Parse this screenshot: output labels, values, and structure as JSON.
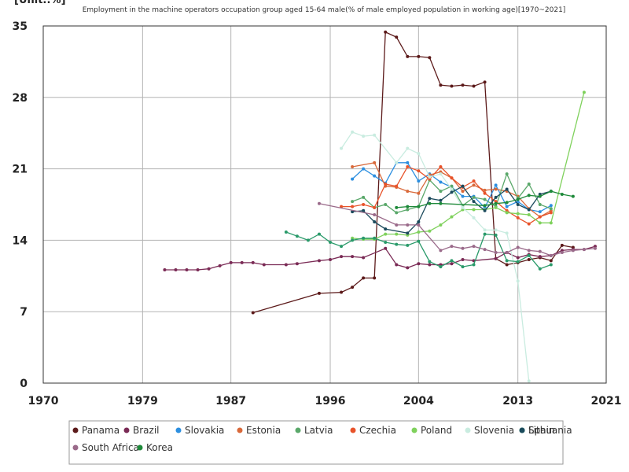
{
  "chart_data": {
    "type": "line",
    "title": "Employment in the machine operators occupation group aged 15-64 male(% of male employed population in working age)[1970~2021]",
    "unit_label": "[Unit.:%]",
    "xlabel": "",
    "ylabel": "",
    "xlim": [
      1970,
      2021
    ],
    "ylim": [
      0,
      35
    ],
    "x_ticks": [
      1970,
      1979,
      1987,
      1996,
      2004,
      2013,
      2021
    ],
    "y_ticks": [
      0,
      7,
      14,
      21,
      28,
      35
    ],
    "grid": true,
    "legend_position": "bottom",
    "series": [
      {
        "name": "Panama",
        "color": "#5c1a1a",
        "points": [
          [
            1989,
            6.9
          ],
          [
            1995,
            8.8
          ],
          [
            1997,
            8.9
          ],
          [
            1998,
            9.4
          ],
          [
            1999,
            10.3
          ],
          [
            2000,
            10.3
          ],
          [
            2001,
            34.4
          ],
          [
            2002,
            33.9
          ],
          [
            2003,
            32.0
          ],
          [
            2004,
            32.0
          ],
          [
            2005,
            31.9
          ],
          [
            2006,
            29.2
          ],
          [
            2007,
            29.1
          ],
          [
            2008,
            29.2
          ],
          [
            2009,
            29.1
          ],
          [
            2010,
            29.5
          ],
          [
            2011,
            12.2
          ],
          [
            2012,
            11.6
          ],
          [
            2013,
            11.8
          ],
          [
            2014,
            12.1
          ],
          [
            2015,
            12.3
          ],
          [
            2016,
            12.0
          ],
          [
            2017,
            13.5
          ],
          [
            2018,
            13.3
          ]
        ]
      },
      {
        "name": "Brazil",
        "color": "#7a2a55",
        "points": [
          [
            1981,
            11.1
          ],
          [
            1982,
            11.1
          ],
          [
            1983,
            11.1
          ],
          [
            1984,
            11.1
          ],
          [
            1985,
            11.2
          ],
          [
            1986,
            11.5
          ],
          [
            1987,
            11.8
          ],
          [
            1988,
            11.8
          ],
          [
            1989,
            11.8
          ],
          [
            1990,
            11.6
          ],
          [
            1992,
            11.6
          ],
          [
            1993,
            11.7
          ],
          [
            1995,
            12.0
          ],
          [
            1996,
            12.1
          ],
          [
            1997,
            12.4
          ],
          [
            1998,
            12.4
          ],
          [
            1999,
            12.3
          ],
          [
            2001,
            13.2
          ],
          [
            2002,
            11.6
          ],
          [
            2003,
            11.3
          ],
          [
            2004,
            11.7
          ],
          [
            2005,
            11.6
          ],
          [
            2006,
            11.6
          ],
          [
            2007,
            11.7
          ],
          [
            2008,
            12.1
          ],
          [
            2009,
            12.0
          ],
          [
            2011,
            12.2
          ],
          [
            2012,
            12.8
          ],
          [
            2013,
            12.3
          ],
          [
            2014,
            12.6
          ],
          [
            2015,
            12.4
          ],
          [
            2016,
            12.5
          ],
          [
            2017,
            13.0
          ],
          [
            2018,
            13.1
          ],
          [
            2019,
            13.1
          ],
          [
            2020,
            13.4
          ]
        ]
      },
      {
        "name": "Slovakia",
        "color": "#2c8fe0",
        "points": [
          [
            1998,
            20.0
          ],
          [
            1999,
            21.0
          ],
          [
            2000,
            20.3
          ],
          [
            2001,
            19.6
          ],
          [
            2002,
            21.6
          ],
          [
            2003,
            21.6
          ],
          [
            2004,
            19.8
          ],
          [
            2005,
            20.5
          ],
          [
            2006,
            19.7
          ],
          [
            2007,
            19.2
          ],
          [
            2008,
            18.3
          ],
          [
            2009,
            18.3
          ],
          [
            2010,
            17.2
          ],
          [
            2011,
            19.4
          ],
          [
            2012,
            17.3
          ],
          [
            2013,
            17.8
          ],
          [
            2014,
            17.0
          ],
          [
            2015,
            16.8
          ],
          [
            2016,
            17.4
          ]
        ]
      },
      {
        "name": "Estonia",
        "color": "#d9693a",
        "points": [
          [
            1998,
            21.2
          ],
          [
            2000,
            21.6
          ],
          [
            2001,
            19.3
          ],
          [
            2002,
            19.2
          ],
          [
            2003,
            18.8
          ],
          [
            2004,
            18.6
          ],
          [
            2005,
            20.4
          ],
          [
            2006,
            20.7
          ],
          [
            2007,
            20.1
          ],
          [
            2008,
            18.8
          ],
          [
            2009,
            19.4
          ],
          [
            2010,
            18.9
          ],
          [
            2011,
            19.0
          ],
          [
            2012,
            18.8
          ],
          [
            2013,
            18.3
          ],
          [
            2014,
            17.1
          ],
          [
            2015,
            16.3
          ],
          [
            2016,
            16.9
          ]
        ]
      },
      {
        "name": "Latvia",
        "color": "#5aa86a",
        "points": [
          [
            1998,
            17.8
          ],
          [
            1999,
            18.2
          ],
          [
            2000,
            17.2
          ],
          [
            2001,
            17.5
          ],
          [
            2002,
            16.7
          ],
          [
            2003,
            17.0
          ],
          [
            2004,
            17.3
          ],
          [
            2005,
            19.9
          ],
          [
            2006,
            18.8
          ],
          [
            2007,
            19.3
          ],
          [
            2008,
            17.4
          ],
          [
            2009,
            18.2
          ],
          [
            2010,
            18.0
          ],
          [
            2011,
            17.3
          ],
          [
            2012,
            20.5
          ],
          [
            2013,
            18.1
          ],
          [
            2014,
            19.5
          ],
          [
            2015,
            17.5
          ],
          [
            2016,
            17.1
          ]
        ]
      },
      {
        "name": "Czechia",
        "color": "#e8532a",
        "points": [
          [
            1997,
            17.3
          ],
          [
            1998,
            17.3
          ],
          [
            1999,
            17.5
          ],
          [
            2000,
            17.2
          ],
          [
            2001,
            19.5
          ],
          [
            2002,
            19.3
          ],
          [
            2003,
            21.2
          ],
          [
            2004,
            20.8
          ],
          [
            2005,
            20.0
          ],
          [
            2006,
            21.2
          ],
          [
            2007,
            20.1
          ],
          [
            2008,
            19.2
          ],
          [
            2009,
            19.8
          ],
          [
            2010,
            18.6
          ],
          [
            2011,
            17.8
          ],
          [
            2012,
            16.9
          ],
          [
            2013,
            16.2
          ],
          [
            2014,
            15.6
          ],
          [
            2015,
            16.3
          ],
          [
            2016,
            16.7
          ]
        ]
      },
      {
        "name": "Poland",
        "color": "#7fd15c",
        "points": [
          [
            1998,
            14.2
          ],
          [
            1999,
            14.1
          ],
          [
            2000,
            14.1
          ],
          [
            2001,
            14.6
          ],
          [
            2002,
            14.6
          ],
          [
            2003,
            14.5
          ],
          [
            2004,
            14.8
          ],
          [
            2005,
            14.9
          ],
          [
            2006,
            15.5
          ],
          [
            2007,
            16.3
          ],
          [
            2008,
            17.0
          ],
          [
            2009,
            17.0
          ],
          [
            2010,
            17.0
          ],
          [
            2011,
            17.2
          ],
          [
            2012,
            16.7
          ],
          [
            2013,
            16.6
          ],
          [
            2014,
            16.5
          ],
          [
            2015,
            15.7
          ],
          [
            2016,
            15.7
          ],
          [
            2019,
            28.5
          ]
        ]
      },
      {
        "name": "Slovenia",
        "color": "#c9ece0",
        "points": [
          [
            1997,
            23.0
          ],
          [
            1998,
            24.6
          ],
          [
            1999,
            24.2
          ],
          [
            2000,
            24.3
          ],
          [
            2002,
            21.6
          ],
          [
            2003,
            23.0
          ],
          [
            2004,
            22.5
          ],
          [
            2005,
            20.2
          ],
          [
            2006,
            20.5
          ],
          [
            2007,
            19.0
          ],
          [
            2008,
            17.2
          ],
          [
            2009,
            16.2
          ],
          [
            2010,
            15.0
          ],
          [
            2011,
            15.0
          ],
          [
            2012,
            14.7
          ],
          [
            2013,
            10.0
          ],
          [
            2014,
            0.2
          ]
        ]
      },
      {
        "name": "Spain",
        "color": "#2a9a6a",
        "points": [
          [
            1992,
            14.8
          ],
          [
            1993,
            14.4
          ],
          [
            1994,
            14.0
          ],
          [
            1995,
            14.6
          ],
          [
            1996,
            13.8
          ],
          [
            1997,
            13.4
          ],
          [
            1998,
            14.0
          ],
          [
            1999,
            14.2
          ],
          [
            2000,
            14.2
          ],
          [
            2001,
            13.8
          ],
          [
            2002,
            13.6
          ],
          [
            2003,
            13.5
          ],
          [
            2004,
            13.9
          ],
          [
            2005,
            11.9
          ],
          [
            2006,
            11.4
          ],
          [
            2007,
            12.0
          ],
          [
            2008,
            11.4
          ],
          [
            2009,
            11.6
          ],
          [
            2010,
            14.6
          ],
          [
            2011,
            14.5
          ],
          [
            2012,
            12.0
          ],
          [
            2013,
            11.9
          ],
          [
            2014,
            12.5
          ],
          [
            2015,
            11.2
          ],
          [
            2016,
            11.6
          ]
        ]
      },
      {
        "name": "Lithuania",
        "color": "#1b4a5c",
        "points": [
          [
            1998,
            16.8
          ],
          [
            1999,
            16.9
          ],
          [
            2000,
            15.8
          ],
          [
            2001,
            15.1
          ],
          [
            2003,
            14.7
          ],
          [
            2004,
            15.8
          ],
          [
            2005,
            18.1
          ],
          [
            2006,
            17.9
          ],
          [
            2007,
            18.7
          ],
          [
            2008,
            19.3
          ],
          [
            2009,
            17.8
          ],
          [
            2010,
            16.9
          ],
          [
            2011,
            18.2
          ],
          [
            2012,
            19.0
          ],
          [
            2013,
            17.5
          ],
          [
            2014,
            17.0
          ],
          [
            2015,
            18.5
          ],
          [
            2016,
            18.8
          ]
        ]
      },
      {
        "name": "South Africa",
        "color": "#9a6a8a",
        "points": [
          [
            1995,
            17.6
          ],
          [
            2000,
            16.5
          ],
          [
            2002,
            15.5
          ],
          [
            2003,
            15.5
          ],
          [
            2004,
            15.5
          ],
          [
            2006,
            13.0
          ],
          [
            2007,
            13.4
          ],
          [
            2008,
            13.2
          ],
          [
            2009,
            13.4
          ],
          [
            2010,
            13.1
          ],
          [
            2011,
            12.8
          ],
          [
            2012,
            12.8
          ],
          [
            2013,
            13.3
          ],
          [
            2014,
            13.0
          ],
          [
            2015,
            12.9
          ],
          [
            2016,
            12.5
          ],
          [
            2017,
            12.8
          ],
          [
            2018,
            13.0
          ],
          [
            2019,
            13.1
          ],
          [
            2020,
            13.2
          ]
        ]
      },
      {
        "name": "Korea",
        "color": "#1e8a3a",
        "points": [
          [
            2002,
            17.2
          ],
          [
            2003,
            17.3
          ],
          [
            2004,
            17.3
          ],
          [
            2005,
            17.6
          ],
          [
            2006,
            17.6
          ],
          [
            2010,
            17.4
          ],
          [
            2011,
            17.6
          ],
          [
            2012,
            17.7
          ],
          [
            2013,
            18.0
          ],
          [
            2014,
            18.4
          ],
          [
            2015,
            18.3
          ],
          [
            2016,
            18.8
          ],
          [
            2017,
            18.5
          ],
          [
            2018,
            18.3
          ]
        ]
      }
    ]
  }
}
